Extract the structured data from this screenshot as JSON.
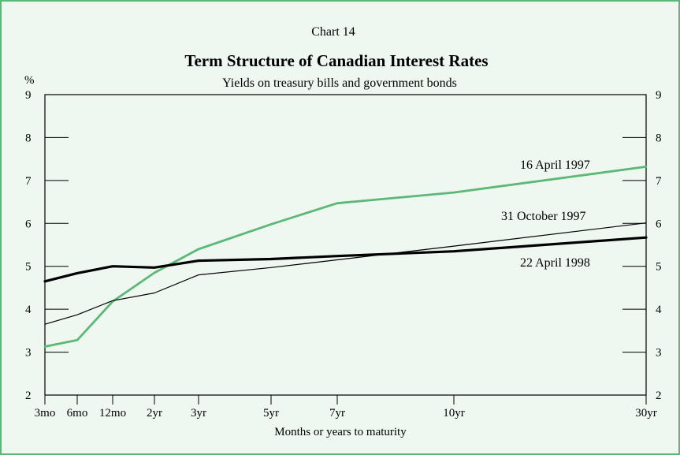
{
  "chart_data": {
    "type": "line",
    "number": "Chart 14",
    "title": "Term Structure of Canadian Interest Rates",
    "subtitle": "Yields on treasury bills and government bonds",
    "ylabel": "%",
    "xlabel": "Months or years to maturity",
    "ylim": [
      2,
      9
    ],
    "y_ticks": [
      2,
      3,
      4,
      5,
      6,
      7,
      8,
      9
    ],
    "x_ticks": [
      {
        "label": "3mo",
        "months": 3
      },
      {
        "label": "6mo",
        "months": 6
      },
      {
        "label": "12mo",
        "months": 12
      },
      {
        "label": "2yr",
        "months": 24
      },
      {
        "label": "3yr",
        "months": 36
      },
      {
        "label": "5yr",
        "months": 60
      },
      {
        "label": "7yr",
        "months": 84
      },
      {
        "label": "10yr",
        "months": 120
      },
      {
        "label": "30yr",
        "months": 360
      }
    ],
    "grid": false,
    "series": [
      {
        "name": "16 April 1997",
        "color": "#5cb876",
        "weight": "medium",
        "points": [
          {
            "x": 3,
            "y": 3.13
          },
          {
            "x": 6,
            "y": 3.28
          },
          {
            "x": 12,
            "y": 4.18
          },
          {
            "x": 24,
            "y": 4.85
          },
          {
            "x": 36,
            "y": 5.4
          },
          {
            "x": 60,
            "y": 5.98
          },
          {
            "x": 84,
            "y": 6.47
          },
          {
            "x": 120,
            "y": 6.72
          },
          {
            "x": 360,
            "y": 7.32
          }
        ]
      },
      {
        "name": "31 October 1997",
        "color": "#000000",
        "weight": "thin",
        "points": [
          {
            "x": 3,
            "y": 3.65
          },
          {
            "x": 6,
            "y": 3.87
          },
          {
            "x": 12,
            "y": 4.2
          },
          {
            "x": 24,
            "y": 4.38
          },
          {
            "x": 36,
            "y": 4.8
          },
          {
            "x": 60,
            "y": 4.97
          },
          {
            "x": 84,
            "y": 5.15
          },
          {
            "x": 120,
            "y": 5.47
          },
          {
            "x": 360,
            "y": 6.01
          }
        ]
      },
      {
        "name": "22 April 1998",
        "color": "#000000",
        "weight": "thick",
        "points": [
          {
            "x": 3,
            "y": 4.65
          },
          {
            "x": 6,
            "y": 4.84
          },
          {
            "x": 12,
            "y": 5.0
          },
          {
            "x": 24,
            "y": 4.97
          },
          {
            "x": 36,
            "y": 5.13
          },
          {
            "x": 60,
            "y": 5.17
          },
          {
            "x": 84,
            "y": 5.24
          },
          {
            "x": 120,
            "y": 5.35
          },
          {
            "x": 360,
            "y": 5.67
          }
        ]
      }
    ]
  }
}
